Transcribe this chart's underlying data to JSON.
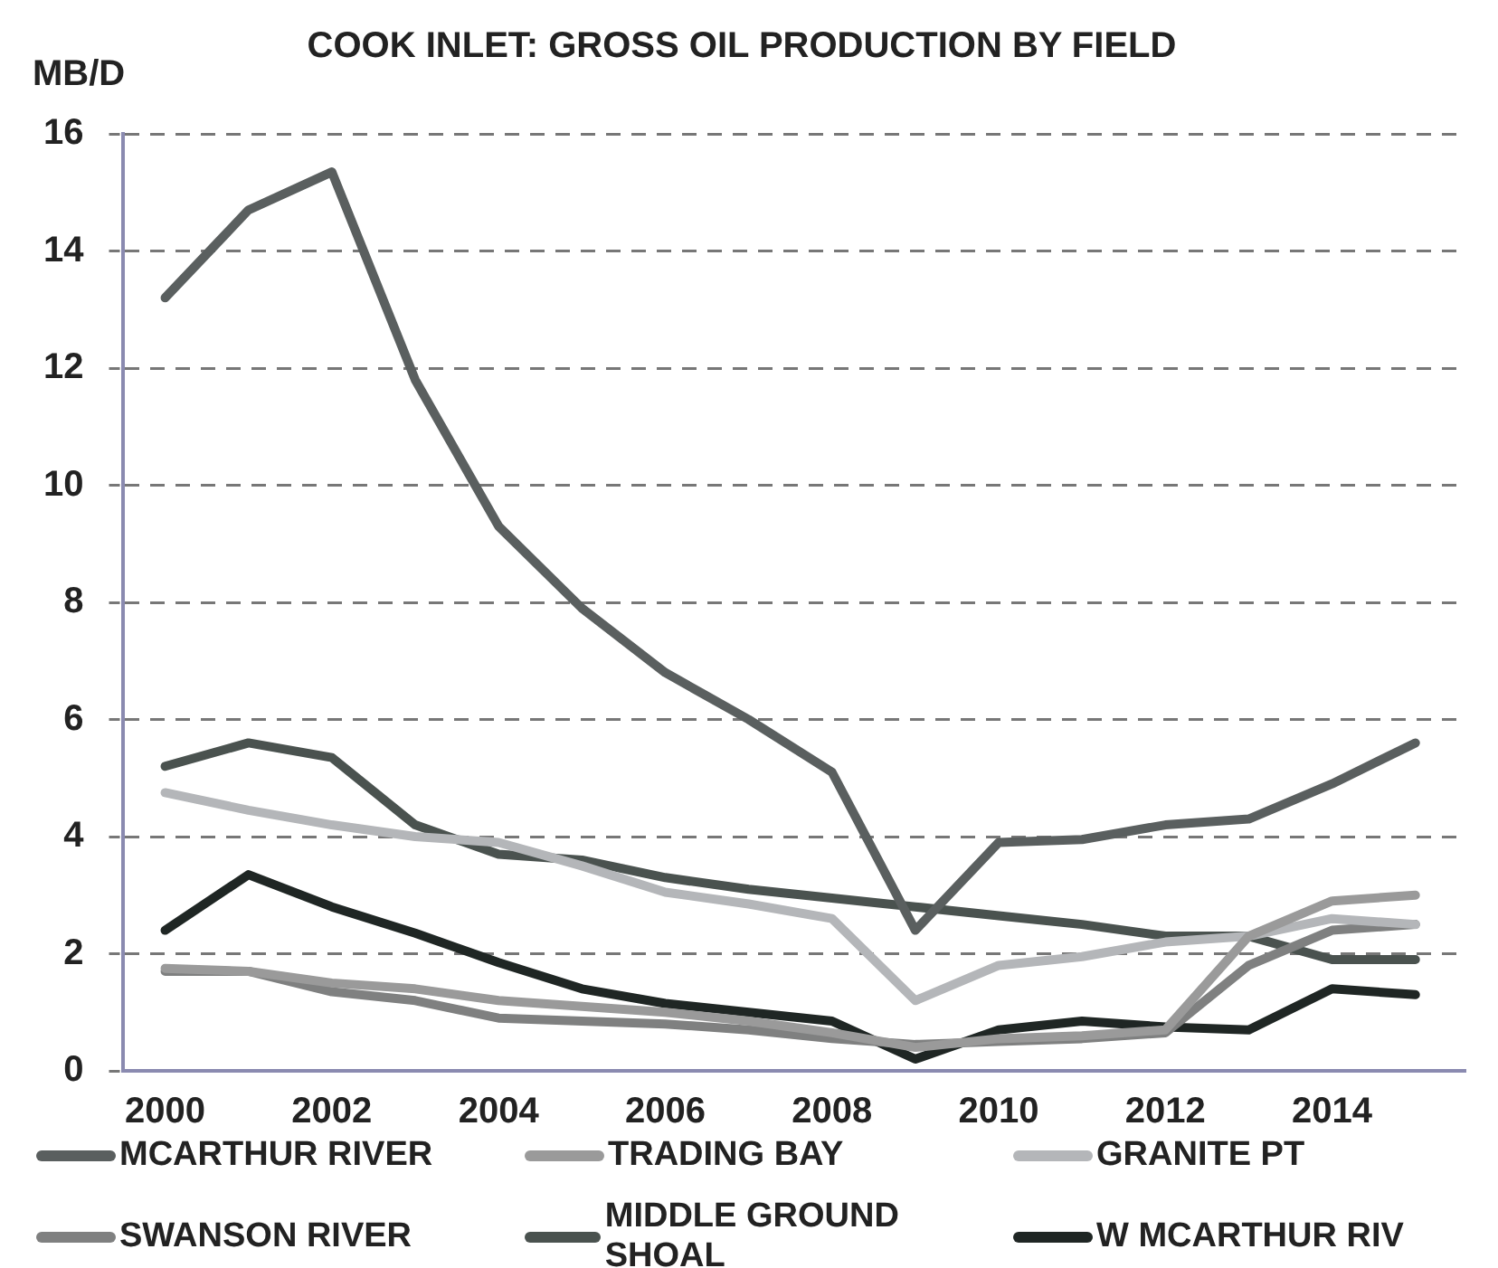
{
  "chart_data": {
    "type": "line",
    "title": "COOK INLET: GROSS OIL PRODUCTION BY FIELD",
    "ylabel": "MB/D",
    "x": [
      2000,
      2001,
      2002,
      2003,
      2004,
      2005,
      2006,
      2007,
      2008,
      2009,
      2010,
      2011,
      2012,
      2013,
      2014,
      2015
    ],
    "series": [
      {
        "name": "MCARTHUR RIVER",
        "color": "#5a5f5f",
        "values": [
          13.2,
          14.7,
          15.35,
          11.8,
          9.3,
          7.9,
          6.8,
          6.0,
          5.1,
          2.4,
          3.9,
          3.95,
          4.2,
          4.3,
          4.9,
          5.6
        ]
      },
      {
        "name": "TRADING BAY",
        "color": "#9a9a9a",
        "values": [
          1.75,
          1.7,
          1.5,
          1.4,
          1.2,
          1.1,
          1.0,
          0.85,
          0.65,
          0.4,
          0.55,
          0.6,
          0.7,
          2.3,
          2.9,
          3.0
        ]
      },
      {
        "name": "GRANITE PT",
        "color": "#b4b6b9",
        "values": [
          4.75,
          4.45,
          4.2,
          4.0,
          3.9,
          3.5,
          3.05,
          2.85,
          2.6,
          1.2,
          1.8,
          1.95,
          2.2,
          2.3,
          2.6,
          2.5
        ]
      },
      {
        "name": "SWANSON RIVER",
        "color": "#7f8080",
        "values": [
          1.7,
          1.7,
          1.35,
          1.2,
          0.9,
          0.85,
          0.8,
          0.7,
          0.55,
          0.45,
          0.5,
          0.55,
          0.65,
          1.8,
          2.4,
          2.5
        ]
      },
      {
        "name": "MIDDLE GROUND SHOAL",
        "color": "#4a524f",
        "values": [
          5.2,
          5.6,
          5.35,
          4.2,
          3.7,
          3.6,
          3.3,
          3.1,
          2.95,
          2.8,
          2.65,
          2.5,
          2.3,
          2.3,
          1.9,
          1.9
        ]
      },
      {
        "name": "W MCARTHUR RIV",
        "color": "#1f2624",
        "values": [
          2.4,
          3.35,
          2.8,
          2.35,
          1.85,
          1.4,
          1.15,
          1.0,
          0.85,
          0.2,
          0.7,
          0.85,
          0.75,
          0.7,
          1.4,
          1.3
        ]
      }
    ],
    "xlim": [
      1999.5,
      2015.6
    ],
    "xticks": [
      2000,
      2002,
      2004,
      2006,
      2008,
      2010,
      2012,
      2014
    ],
    "ylim": [
      0,
      16
    ],
    "yticks": [
      0,
      2,
      4,
      6,
      8,
      10,
      12,
      14,
      16
    ],
    "grid": "y",
    "legend": "bottom",
    "line_style": "solid",
    "marker": "none"
  }
}
